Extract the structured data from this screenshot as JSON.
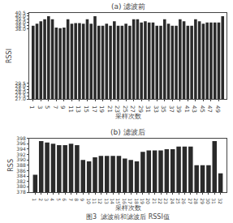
{
  "chart_data": [
    {
      "type": "bar",
      "title": "(a) 滤波前",
      "xlabel": "采样次数",
      "ylabel": "RSSI",
      "x": [
        1,
        2,
        3,
        4,
        5,
        6,
        7,
        8,
        9,
        10,
        11,
        12,
        13,
        14,
        15,
        16,
        17,
        18,
        19,
        20,
        21,
        22,
        23,
        24,
        25,
        26,
        27,
        28,
        29,
        30,
        31,
        32,
        33,
        34,
        35,
        36,
        37,
        38,
        39,
        40,
        41,
        42,
        43,
        44,
        45,
        46,
        47,
        48,
        49,
        50
      ],
      "values": [
        38.5,
        38.8,
        39.2,
        39.5,
        40.0,
        39.5,
        38.2,
        38.1,
        38.2,
        39.5,
        38.8,
        38.9,
        38.9,
        38.8,
        39.5,
        38.8,
        40.0,
        38.5,
        38.5,
        38.8,
        38.5,
        39.2,
        38.5,
        38.5,
        38.8,
        38.5,
        39.5,
        39.5,
        39.0,
        39.2,
        39.0,
        39.0,
        38.5,
        38.5,
        39.5,
        38.8,
        38.5,
        38.5,
        39.5,
        39.2,
        38.5,
        38.5,
        39.5,
        39.2,
        38.8,
        39.0,
        39.0,
        39.0,
        39.0,
        40.0
      ],
      "color": "#2a2a2a",
      "xlim": [
        0,
        51
      ],
      "xticks": [
        1,
        3,
        5,
        7,
        9,
        11,
        13,
        15,
        17,
        19,
        21,
        23,
        25,
        27,
        29,
        31,
        33,
        35,
        37,
        39,
        41,
        43,
        45,
        47,
        49
      ],
      "ylim": [
        27.0,
        40.5
      ],
      "yticks": [
        {
          "value": 27,
          "label": "27.0"
        },
        27.5,
        {
          "value": 28,
          "label": "28.0"
        },
        28.5,
        {
          "value": 29,
          "label": "29.0"
        },
        29.5,
        {
          "value": 38,
          "label": "38.0"
        },
        38.5,
        {
          "value": 39,
          "label": "39.0"
        },
        39.5,
        {
          "value": 40,
          "label": "40.0"
        },
        40.5
      ],
      "grid": false
    },
    {
      "type": "bar",
      "title": "(b) 滤波后",
      "xlabel": "采样次数",
      "ylabel": "RSS",
      "x": [
        1,
        2,
        3,
        4,
        5,
        6,
        7,
        8,
        9,
        10,
        11,
        12,
        13,
        14,
        15,
        16,
        17,
        18,
        19,
        20,
        21,
        22,
        23,
        24,
        25,
        26,
        27,
        28,
        29,
        30,
        31,
        32
      ],
      "values": [
        384.5,
        397.0,
        396.5,
        396.0,
        395.5,
        395.5,
        396.0,
        395.5,
        390.0,
        389.5,
        391.0,
        391.5,
        391.5,
        391.5,
        391.5,
        390.5,
        390.0,
        389.5,
        393.0,
        393.5,
        393.5,
        393.5,
        394.0,
        394.0,
        395.0,
        395.0,
        395.0,
        388.0,
        388.0,
        388.0,
        397.0,
        385.0
      ],
      "color": "#2a2a2a",
      "xlim": [
        0,
        33
      ],
      "xticks": [
        1,
        2,
        3,
        4,
        5,
        6,
        7,
        8,
        9,
        10,
        11,
        12,
        13,
        14,
        15,
        16,
        17,
        18,
        19,
        20,
        21,
        22,
        23,
        24,
        25,
        26,
        27,
        28,
        29,
        30,
        31,
        32
      ],
      "ylim": [
        378,
        398
      ],
      "yticks": [
        378,
        380,
        382,
        384,
        386,
        388,
        390,
        392,
        394,
        396,
        398
      ],
      "grid": false
    }
  ],
  "caption": "图3  滤波前和滤波后 RSSI值"
}
